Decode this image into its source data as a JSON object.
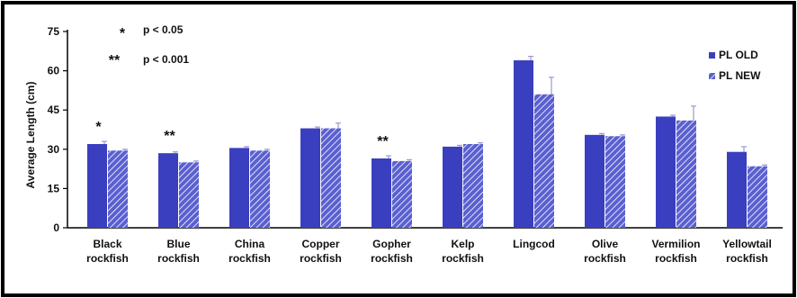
{
  "chart_data": {
    "type": "bar",
    "ylabel": "Average Length (cm)",
    "ylim": [
      0,
      75
    ],
    "yticks": [
      "0",
      "15",
      "30",
      "45",
      "60",
      "75"
    ],
    "grid": false,
    "legend_position": "top-right",
    "categories": [
      [
        "Black",
        "rockfish"
      ],
      [
        "Blue",
        "rockfish"
      ],
      [
        "China",
        "rockfish"
      ],
      [
        "Copper",
        "rockfish"
      ],
      [
        "Gopher",
        "rockfish"
      ],
      [
        "Kelp",
        "rockfish"
      ],
      [
        "Lingcod"
      ],
      [
        "Olive",
        "rockfish"
      ],
      [
        "Vermilion",
        "rockfish"
      ],
      [
        "Yellowtail",
        "rockfish"
      ]
    ],
    "series": [
      {
        "name": "PL OLD",
        "color": "#3a3fbf",
        "pattern": "solid",
        "values": [
          32,
          28.5,
          30.5,
          38,
          26.5,
          31,
          64,
          35.5,
          42.5,
          29
        ],
        "errors": [
          1,
          0.5,
          0.5,
          0.5,
          1,
          0.5,
          1.5,
          0.5,
          0.5,
          2
        ]
      },
      {
        "name": "PL NEW",
        "color": "#4a50c8",
        "pattern": "hatched",
        "values": [
          29.5,
          25,
          29.5,
          38,
          25.5,
          32,
          51,
          35,
          41,
          23.5
        ],
        "errors": [
          0.5,
          0.5,
          0.5,
          2,
          0.5,
          0.5,
          6.5,
          0.5,
          5.5,
          0.5
        ]
      }
    ],
    "significance_marks": [
      "*",
      "**",
      "",
      "",
      "**",
      "",
      "",
      "",
      "",
      ""
    ],
    "significance_key": [
      {
        "symbol": "*",
        "label": "p < 0.05"
      },
      {
        "symbol": "**",
        "label": "p < 0.001"
      }
    ]
  }
}
